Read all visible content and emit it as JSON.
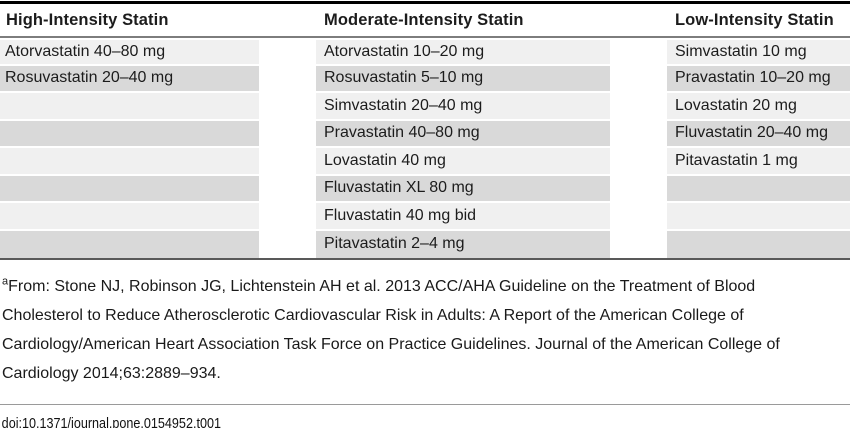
{
  "table": {
    "columns": [
      {
        "header": "High-Intensity Statin",
        "rows": [
          "Atorvastatin 40–80 mg",
          "Rosuvastatin 20–40 mg",
          "",
          "",
          "",
          "",
          "",
          ""
        ]
      },
      {
        "header": "Moderate-Intensity Statin",
        "rows": [
          "Atorvastatin 10–20 mg",
          "Rosuvastatin 5–10 mg",
          "Simvastatin 20–40 mg",
          "Pravastatin 40–80 mg",
          "Lovastatin 40 mg",
          "Fluvastatin XL 80 mg",
          "Fluvastatin 40 mg bid",
          "Pitavastatin 2–4 mg"
        ]
      },
      {
        "header": "Low-Intensity Statin",
        "rows": [
          "Simvastatin 10 mg",
          "Pravastatin 10–20 mg",
          "Lovastatin 20 mg",
          "Fluvastatin 20–40 mg",
          "Pitavastatin 1 mg",
          "",
          "",
          ""
        ]
      }
    ]
  },
  "footnote": {
    "marker": "a",
    "text": "From: Stone NJ, Robinson JG, Lichtenstein AH et al. 2013 ACC/AHA Guideline on the Treatment of Blood Cholesterol to Reduce Atherosclerotic Cardiovascular Risk in Adults: A Report of the American College of Cardiology/American Heart Association Task Force on Practice Guidelines. Journal of the American College of Cardiology 2014;63:2889–934."
  },
  "doi": "doi:10.1371/journal.pone.0154952.t001",
  "colors": {
    "row_light": "#f0f0f0",
    "row_dark": "#d9d9d9",
    "top_rule": "#000000",
    "header_rule": "#7d7d7d",
    "bottom_rule": "#595959",
    "footnote_rule": "#9a9a9a"
  }
}
